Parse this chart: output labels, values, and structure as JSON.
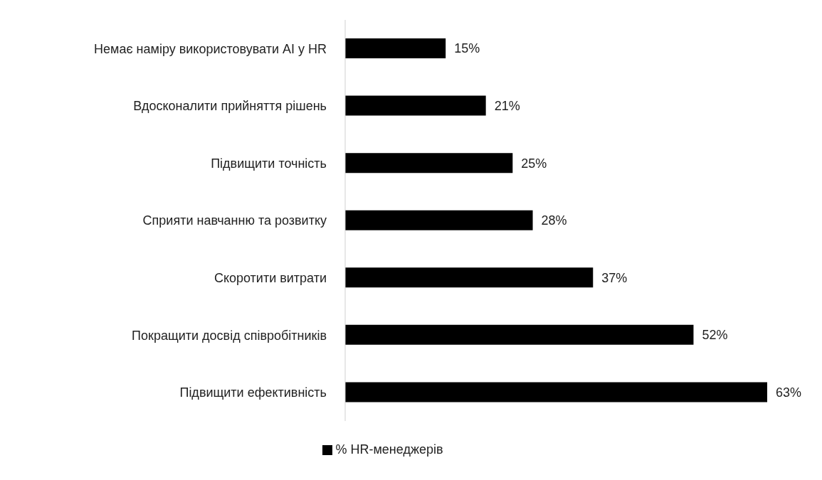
{
  "chart_data": {
    "type": "bar",
    "orientation": "horizontal",
    "categories": [
      "Немає наміру використовувати AI у HR",
      "Вдосконалити прийняття рішень",
      "Підвищити точність",
      "Сприяти навчанню та розвитку",
      "Скоротити витрати",
      "Покращити досвід співробітників",
      "Підвищити ефективність"
    ],
    "series": [
      {
        "name": "% HR-менеджерів",
        "color": "#000000",
        "values": [
          15,
          21,
          25,
          28,
          37,
          52,
          63
        ],
        "value_labels": [
          "15%",
          "21%",
          "25%",
          "28%",
          "37%",
          "52%",
          "63%"
        ]
      }
    ],
    "data_labels": true,
    "legend": "bottom",
    "tick_labels": "y"
  }
}
